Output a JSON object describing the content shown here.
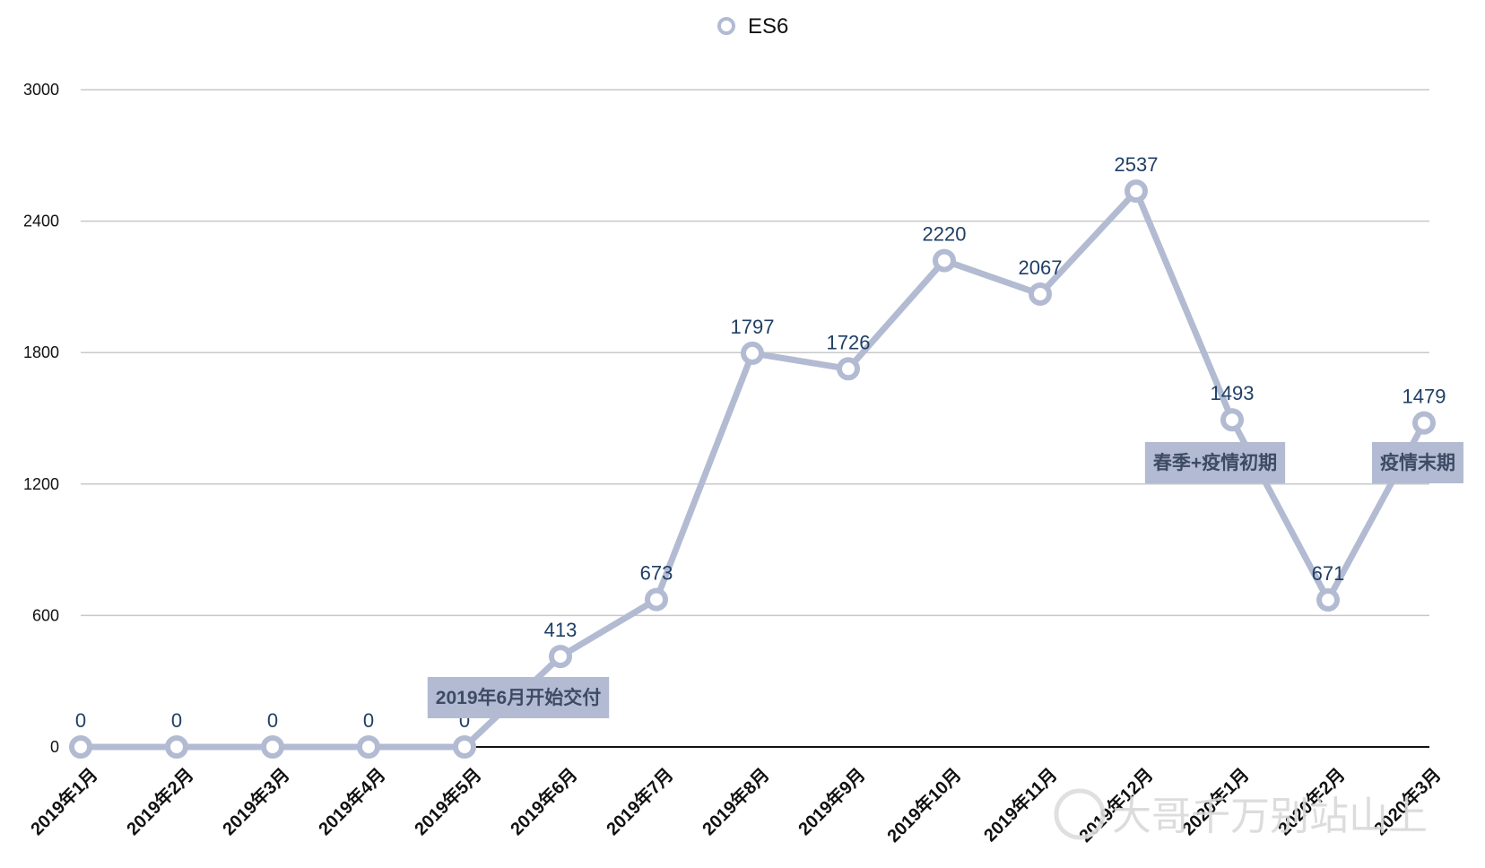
{
  "chart_data": {
    "type": "line",
    "categories": [
      "2019年1月",
      "2019年2月",
      "2019年3月",
      "2019年4月",
      "2019年5月",
      "2019年6月",
      "2019年7月",
      "2019年8月",
      "2019年9月",
      "2019年10月",
      "2019年11月",
      "2019年12月",
      "2020年1月",
      "2020年2月",
      "2020年3月"
    ],
    "series": [
      {
        "name": "ES6",
        "values": [
          0,
          0,
          0,
          0,
          0,
          413,
          673,
          1797,
          1726,
          2220,
          2067,
          2537,
          1493,
          671,
          1479
        ],
        "color": "#b2bbd2"
      }
    ],
    "ylim": [
      0,
      3000
    ],
    "yticks": [
      0,
      600,
      1200,
      1800,
      2400,
      3000
    ],
    "grid": true,
    "legend": "top-center",
    "annotations": [
      {
        "text": "2019年6月开始交付",
        "near": "2019年5月"
      },
      {
        "text": "春季+疫情初期",
        "near": "2020年1月"
      },
      {
        "text": "疫情末期",
        "near": "2020年3月"
      }
    ],
    "annotation_color": "#b2bbd2"
  },
  "watermark": {
    "text": "大哥千万别站山上"
  }
}
